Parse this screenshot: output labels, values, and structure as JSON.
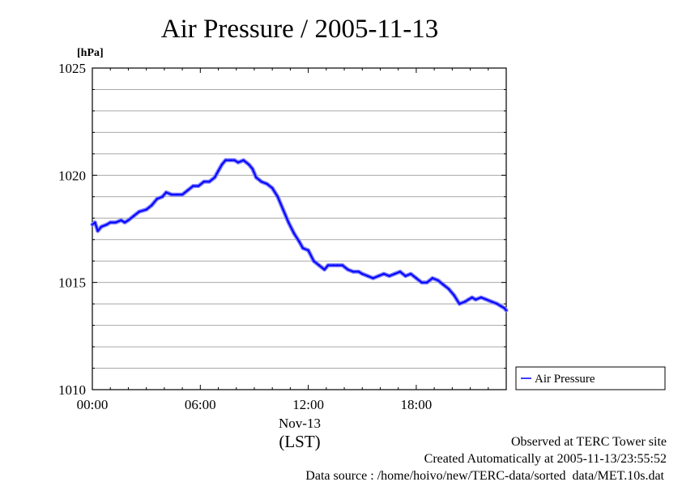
{
  "chart_data": {
    "type": "line",
    "title": "Air Pressure / 2005-11-13",
    "ylabel": "[hPa]",
    "ylim": [
      1010,
      1025
    ],
    "yticks": [
      "1010",
      "1015",
      "1020",
      "1025"
    ],
    "xlim": [
      0,
      23
    ],
    "xticks": [
      {
        "x": 0,
        "label": "00:00"
      },
      {
        "x": 6,
        "label": "06:00"
      },
      {
        "x": 12,
        "label": "12:00"
      },
      {
        "x": 18,
        "label": "18:00"
      }
    ],
    "date_label": "Nov-13",
    "timezone_label": "(LST)",
    "grid": true,
    "legend_position": "right",
    "series": [
      {
        "name": "Air Pressure",
        "color": "#0000ff",
        "x": [
          0,
          0.15,
          0.3,
          0.5,
          0.8,
          1.0,
          1.3,
          1.6,
          1.8,
          2.0,
          2.3,
          2.6,
          3.0,
          3.3,
          3.6,
          3.9,
          4.1,
          4.4,
          4.7,
          5.0,
          5.3,
          5.6,
          5.9,
          6.2,
          6.5,
          6.8,
          7.0,
          7.2,
          7.4,
          7.7,
          7.9,
          8.1,
          8.4,
          8.7,
          8.9,
          9.1,
          9.4,
          9.7,
          10.0,
          10.3,
          10.6,
          10.9,
          11.2,
          11.5,
          11.7,
          12.0,
          12.3,
          12.6,
          12.9,
          13.1,
          13.4,
          13.6,
          13.9,
          14.2,
          14.5,
          14.8,
          15.0,
          15.3,
          15.6,
          15.9,
          16.2,
          16.5,
          16.8,
          17.1,
          17.4,
          17.7,
          18.0,
          18.3,
          18.6,
          18.9,
          19.2,
          19.5,
          19.8,
          20.1,
          20.4,
          20.7,
          20.9,
          21.1,
          21.3,
          21.6,
          21.9,
          22.2,
          22.5,
          22.7,
          22.9,
          23.0
        ],
        "y": [
          1017.7,
          1017.8,
          1017.4,
          1017.6,
          1017.7,
          1017.8,
          1017.8,
          1017.9,
          1017.8,
          1017.9,
          1018.1,
          1018.3,
          1018.4,
          1018.6,
          1018.9,
          1019.0,
          1019.2,
          1019.1,
          1019.1,
          1019.1,
          1019.3,
          1019.5,
          1019.5,
          1019.7,
          1019.7,
          1019.9,
          1020.2,
          1020.5,
          1020.7,
          1020.7,
          1020.7,
          1020.6,
          1020.7,
          1020.5,
          1020.3,
          1019.9,
          1019.7,
          1019.6,
          1019.4,
          1019.0,
          1018.4,
          1017.8,
          1017.3,
          1016.9,
          1016.6,
          1016.5,
          1016.0,
          1015.8,
          1015.6,
          1015.8,
          1015.8,
          1015.8,
          1015.8,
          1015.6,
          1015.5,
          1015.5,
          1015.4,
          1015.3,
          1015.2,
          1015.3,
          1015.4,
          1015.3,
          1015.4,
          1015.5,
          1015.3,
          1015.4,
          1015.2,
          1015.0,
          1015.0,
          1015.2,
          1015.1,
          1014.9,
          1014.7,
          1014.4,
          1014.0,
          1014.1,
          1014.2,
          1014.3,
          1014.2,
          1014.3,
          1014.2,
          1014.1,
          1014.0,
          1013.9,
          1013.8,
          1013.7
        ]
      }
    ]
  },
  "footer": {
    "line1": "Observed at TERC Tower site",
    "line2": "Created Automatically at 2005-11-13/23:55:52",
    "line3": "Data source : /home/hoivo/new/TERC-data/sorted  data/MET.10s.dat"
  }
}
